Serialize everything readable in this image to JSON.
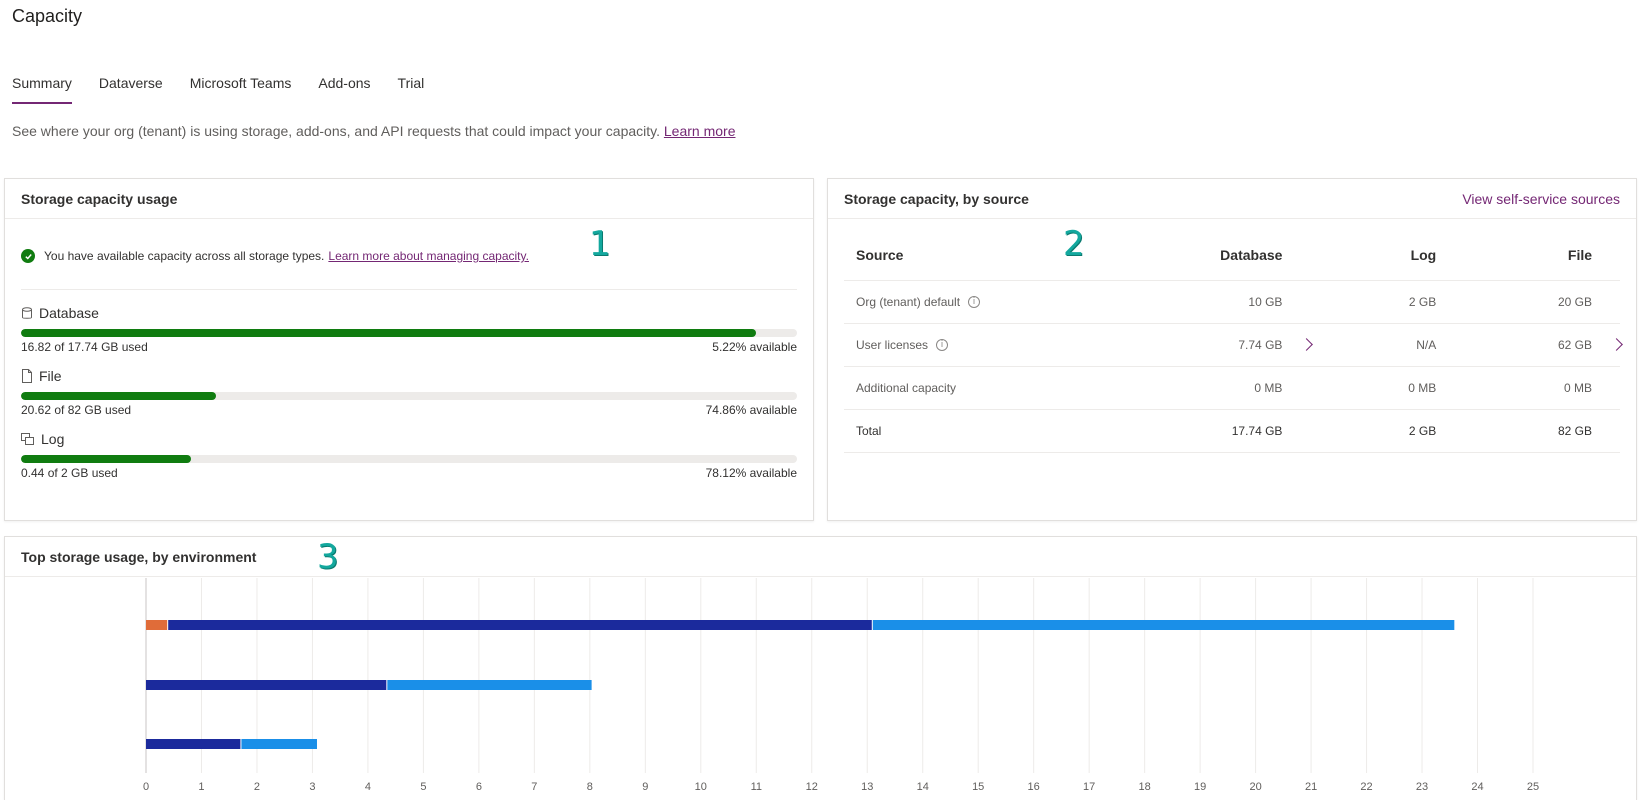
{
  "page": {
    "title": "Capacity"
  },
  "tabs": [
    "Summary",
    "Dataverse",
    "Microsoft Teams",
    "Add-ons",
    "Trial"
  ],
  "description": {
    "text": "See where your org (tenant) is using storage, add-ons, and API requests that could impact your capacity.",
    "link": "Learn more"
  },
  "storage_usage": {
    "title": "Storage capacity usage",
    "notice": "You have available capacity across all storage types.",
    "notice_link": "Learn more about managing capacity.",
    "marker": "1",
    "items": [
      {
        "label": "Database",
        "used_text": "16.82 of 17.74 GB used",
        "available_text": "5.22% available",
        "used_fraction": 0.9478
      },
      {
        "label": "File",
        "used_text": "20.62 of 82 GB used",
        "available_text": "74.86% available",
        "used_fraction": 0.2514
      },
      {
        "label": "Log",
        "used_text": "0.44 of 2 GB used",
        "available_text": "78.12% available",
        "used_fraction": 0.2188
      }
    ]
  },
  "storage_source": {
    "title": "Storage capacity, by source",
    "link": "View self-service sources",
    "marker": "2",
    "columns": [
      "Source",
      "Database",
      "Log",
      "File"
    ],
    "rows": [
      {
        "source": "Org (tenant) default",
        "database": "10 GB",
        "log": "2 GB",
        "file": "20 GB"
      },
      {
        "source": "User licenses",
        "database": "7.74 GB",
        "log": "N/A",
        "file": "62 GB"
      },
      {
        "source": "Additional capacity",
        "database": "0 MB",
        "log": "0 MB",
        "file": "0 MB"
      },
      {
        "source": "Total",
        "database": "17.74 GB",
        "log": "2 GB",
        "file": "82 GB"
      }
    ]
  },
  "top_storage": {
    "title": "Top storage usage, by environment",
    "marker": "3"
  },
  "colors": {
    "accent": "#742774",
    "success": "#107c10",
    "marker": "#13a89e",
    "bar_log": "#e06c39",
    "bar_database": "#1b2a9c",
    "bar_file": "#1a8fe8"
  },
  "chart_data": {
    "type": "bar",
    "orientation": "horizontal",
    "stacked": true,
    "categories": [
      "",
      "",
      ""
    ],
    "series": [
      {
        "values": [
          0.4,
          0,
          0
        ],
        "color": "#e06c39"
      },
      {
        "values": [
          12.7,
          4.35,
          1.72
        ],
        "color": "#1b2a9c"
      },
      {
        "values": [
          10.5,
          3.7,
          1.38
        ],
        "color": "#1a8fe8"
      }
    ],
    "xlim": [
      0,
      25
    ],
    "xticks": [
      0,
      1,
      2,
      3,
      4,
      5,
      6,
      7,
      8,
      9,
      10,
      11,
      12,
      13,
      14,
      15,
      16,
      17,
      18,
      19,
      20,
      21,
      22,
      23,
      24,
      25
    ],
    "grid": "vertical"
  }
}
